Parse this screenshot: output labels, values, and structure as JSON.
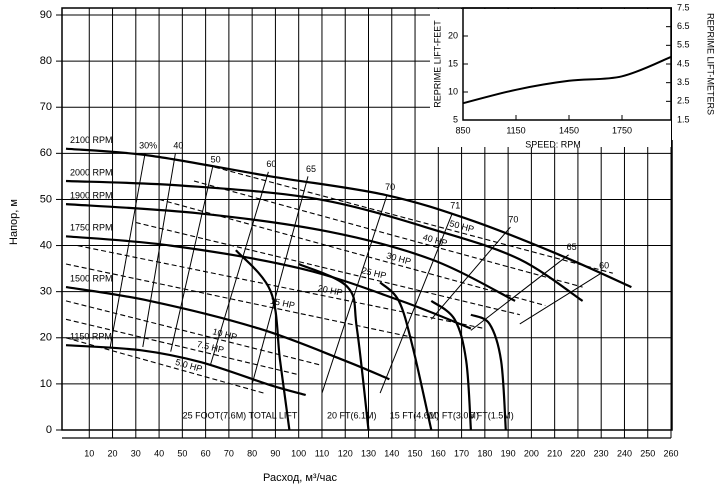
{
  "chart_data": [
    {
      "type": "line",
      "x_label": "Расход, м³/час",
      "y_label": "Напор, м",
      "xlim": [
        0,
        260
      ],
      "xticks": [
        10,
        20,
        30,
        40,
        50,
        60,
        70,
        80,
        90,
        100,
        110,
        120,
        130,
        140,
        150,
        160,
        170,
        180,
        190,
        200,
        210,
        220,
        230,
        240,
        250,
        260
      ],
      "ylim": [
        0,
        90
      ],
      "yticks": [
        0,
        10,
        20,
        30,
        40,
        50,
        60,
        70,
        80,
        90
      ],
      "grid": true,
      "series": [
        {
          "name": "2100 RPM",
          "color": "#000000",
          "x": [
            0,
            36,
            88,
            137,
            174,
            212,
            243
          ],
          "values": [
            61,
            59.5,
            55,
            51,
            45.5,
            38,
            31
          ]
        },
        {
          "name": "2000 RPM",
          "color": "#000000",
          "x": [
            0,
            50,
            109,
            161,
            195,
            222
          ],
          "values": [
            54,
            53,
            50,
            43,
            37,
            28
          ]
        },
        {
          "name": "1900 RPM",
          "color": "#000000",
          "x": [
            0,
            57,
            113,
            157,
            193
          ],
          "values": [
            49,
            47,
            43,
            37,
            28
          ]
        },
        {
          "name": "1750 RPM",
          "color": "#000000",
          "x": [
            0,
            45,
            101,
            144,
            174
          ],
          "values": [
            42,
            40,
            35,
            28,
            22
          ]
        },
        {
          "name": "1500 RPM",
          "color": "#000000",
          "x": [
            0,
            36,
            83,
            120,
            139
          ],
          "values": [
            31,
            28,
            22,
            15,
            11
          ]
        },
        {
          "name": "1150 RPM",
          "color": "#000000",
          "x": [
            0,
            32,
            58,
            88,
            103
          ],
          "values": [
            18.4,
            17.3,
            14.7,
            9.7,
            7.6
          ]
        }
      ],
      "efficiency_lines": [
        {
          "name": "30%",
          "color": "#000000",
          "x": [
            19,
            34
          ],
          "values": [
            18,
            60
          ]
        },
        {
          "name": "40",
          "color": "#000000",
          "x": [
            33,
            47
          ],
          "values": [
            18,
            60
          ]
        },
        {
          "name": "50",
          "color": "#000000",
          "x": [
            45,
            63
          ],
          "values": [
            17,
            57
          ]
        },
        {
          "name": "60",
          "color": "#000000",
          "x": [
            62,
            87
          ],
          "values": [
            14,
            56
          ]
        },
        {
          "name": "65",
          "color": "#000000",
          "x": [
            80,
            104
          ],
          "values": [
            10,
            55
          ]
        },
        {
          "name": "70",
          "color": "#000000",
          "x": [
            110,
            138
          ],
          "values": [
            8,
            51
          ]
        },
        {
          "name": "71",
          "color": "#000000",
          "x": [
            135,
            166
          ],
          "values": [
            8,
            47
          ]
        },
        {
          "name": "70",
          "color": "#000000",
          "x": [
            157,
            191
          ],
          "values": [
            24,
            44
          ]
        },
        {
          "name": "65",
          "color": "#000000",
          "x": [
            174,
            216
          ],
          "values": [
            21.6,
            38
          ]
        },
        {
          "name": "60",
          "color": "#000000",
          "x": [
            195,
            230
          ],
          "values": [
            23,
            34
          ]
        }
      ],
      "hp_lines": [
        {
          "name": "50 HP",
          "color": "#000000",
          "x": [
            64,
            235
          ],
          "values": [
            57,
            34
          ]
        },
        {
          "name": "40 HP",
          "color": "#000000",
          "x": [
            55,
            222
          ],
          "values": [
            54,
            31
          ]
        },
        {
          "name": "30 HP",
          "color": "#000000",
          "x": [
            40,
            206
          ],
          "values": [
            50,
            27
          ]
        },
        {
          "name": "25 HP",
          "color": "#000000",
          "x": [
            30,
            195
          ],
          "values": [
            45,
            25
          ]
        },
        {
          "name": "20 HP",
          "color": "#000000",
          "x": [
            5,
            180
          ],
          "values": [
            40,
            22
          ]
        },
        {
          "name": "15 HP",
          "color": "#000000",
          "x": [
            0,
            150
          ],
          "values": [
            36,
            20
          ]
        },
        {
          "name": "10 HP",
          "color": "#000000",
          "x": [
            0,
            110
          ],
          "values": [
            28,
            14
          ]
        },
        {
          "name": "7.5 HP",
          "color": "#000000",
          "x": [
            0,
            100
          ],
          "values": [
            24,
            12
          ]
        },
        {
          "name": "5.0 HP",
          "color": "#000000",
          "x": [
            0,
            85
          ],
          "values": [
            20,
            8
          ]
        }
      ],
      "lift_curves": [
        {
          "name": "25 FOOT(7.6M) TOTAL LIFT",
          "color": "#000000",
          "x": [
            73,
            88,
            92,
            96
          ],
          "values": [
            39,
            30,
            15,
            0
          ]
        },
        {
          "name": "20 FT(6.1M)",
          "color": "#000000",
          "x": [
            100,
            121,
            125,
            130
          ],
          "values": [
            36,
            31,
            22,
            0
          ]
        },
        {
          "name": "15 FT(4.6M)",
          "color": "#000000",
          "x": [
            135,
            143,
            149,
            157
          ],
          "values": [
            32,
            28,
            18,
            0
          ]
        },
        {
          "name": "10 FT(3.0M)",
          "color": "#000000",
          "x": [
            157,
            167,
            172,
            174
          ],
          "values": [
            28,
            24,
            15,
            0
          ]
        },
        {
          "name": "5 FT(1.5M)",
          "color": "#000000",
          "x": [
            174,
            182,
            187,
            189
          ],
          "values": [
            25,
            23,
            15,
            0
          ]
        }
      ]
    },
    {
      "type": "line",
      "x_label": "SPEED: RPM",
      "y_label": "REPRIME LIFT-FEET",
      "y2_label": "REPRIME LIFT-METERS",
      "xlim": [
        850,
        2050
      ],
      "xticks": [
        850,
        1150,
        1450,
        1750
      ],
      "ylim": [
        5,
        25
      ],
      "yticks": [
        5,
        10,
        15,
        20
      ],
      "y2lim": [
        1.5,
        7.5
      ],
      "y2ticks": [
        1.5,
        2.5,
        3.5,
        4.5,
        5.5,
        6.5,
        7.5
      ],
      "series": [
        {
          "color": "#000000",
          "x": [
            850,
            1150,
            1450,
            1750,
            2030
          ],
          "values": [
            8,
            10.4,
            12,
            12.8,
            16.3
          ]
        }
      ]
    }
  ]
}
